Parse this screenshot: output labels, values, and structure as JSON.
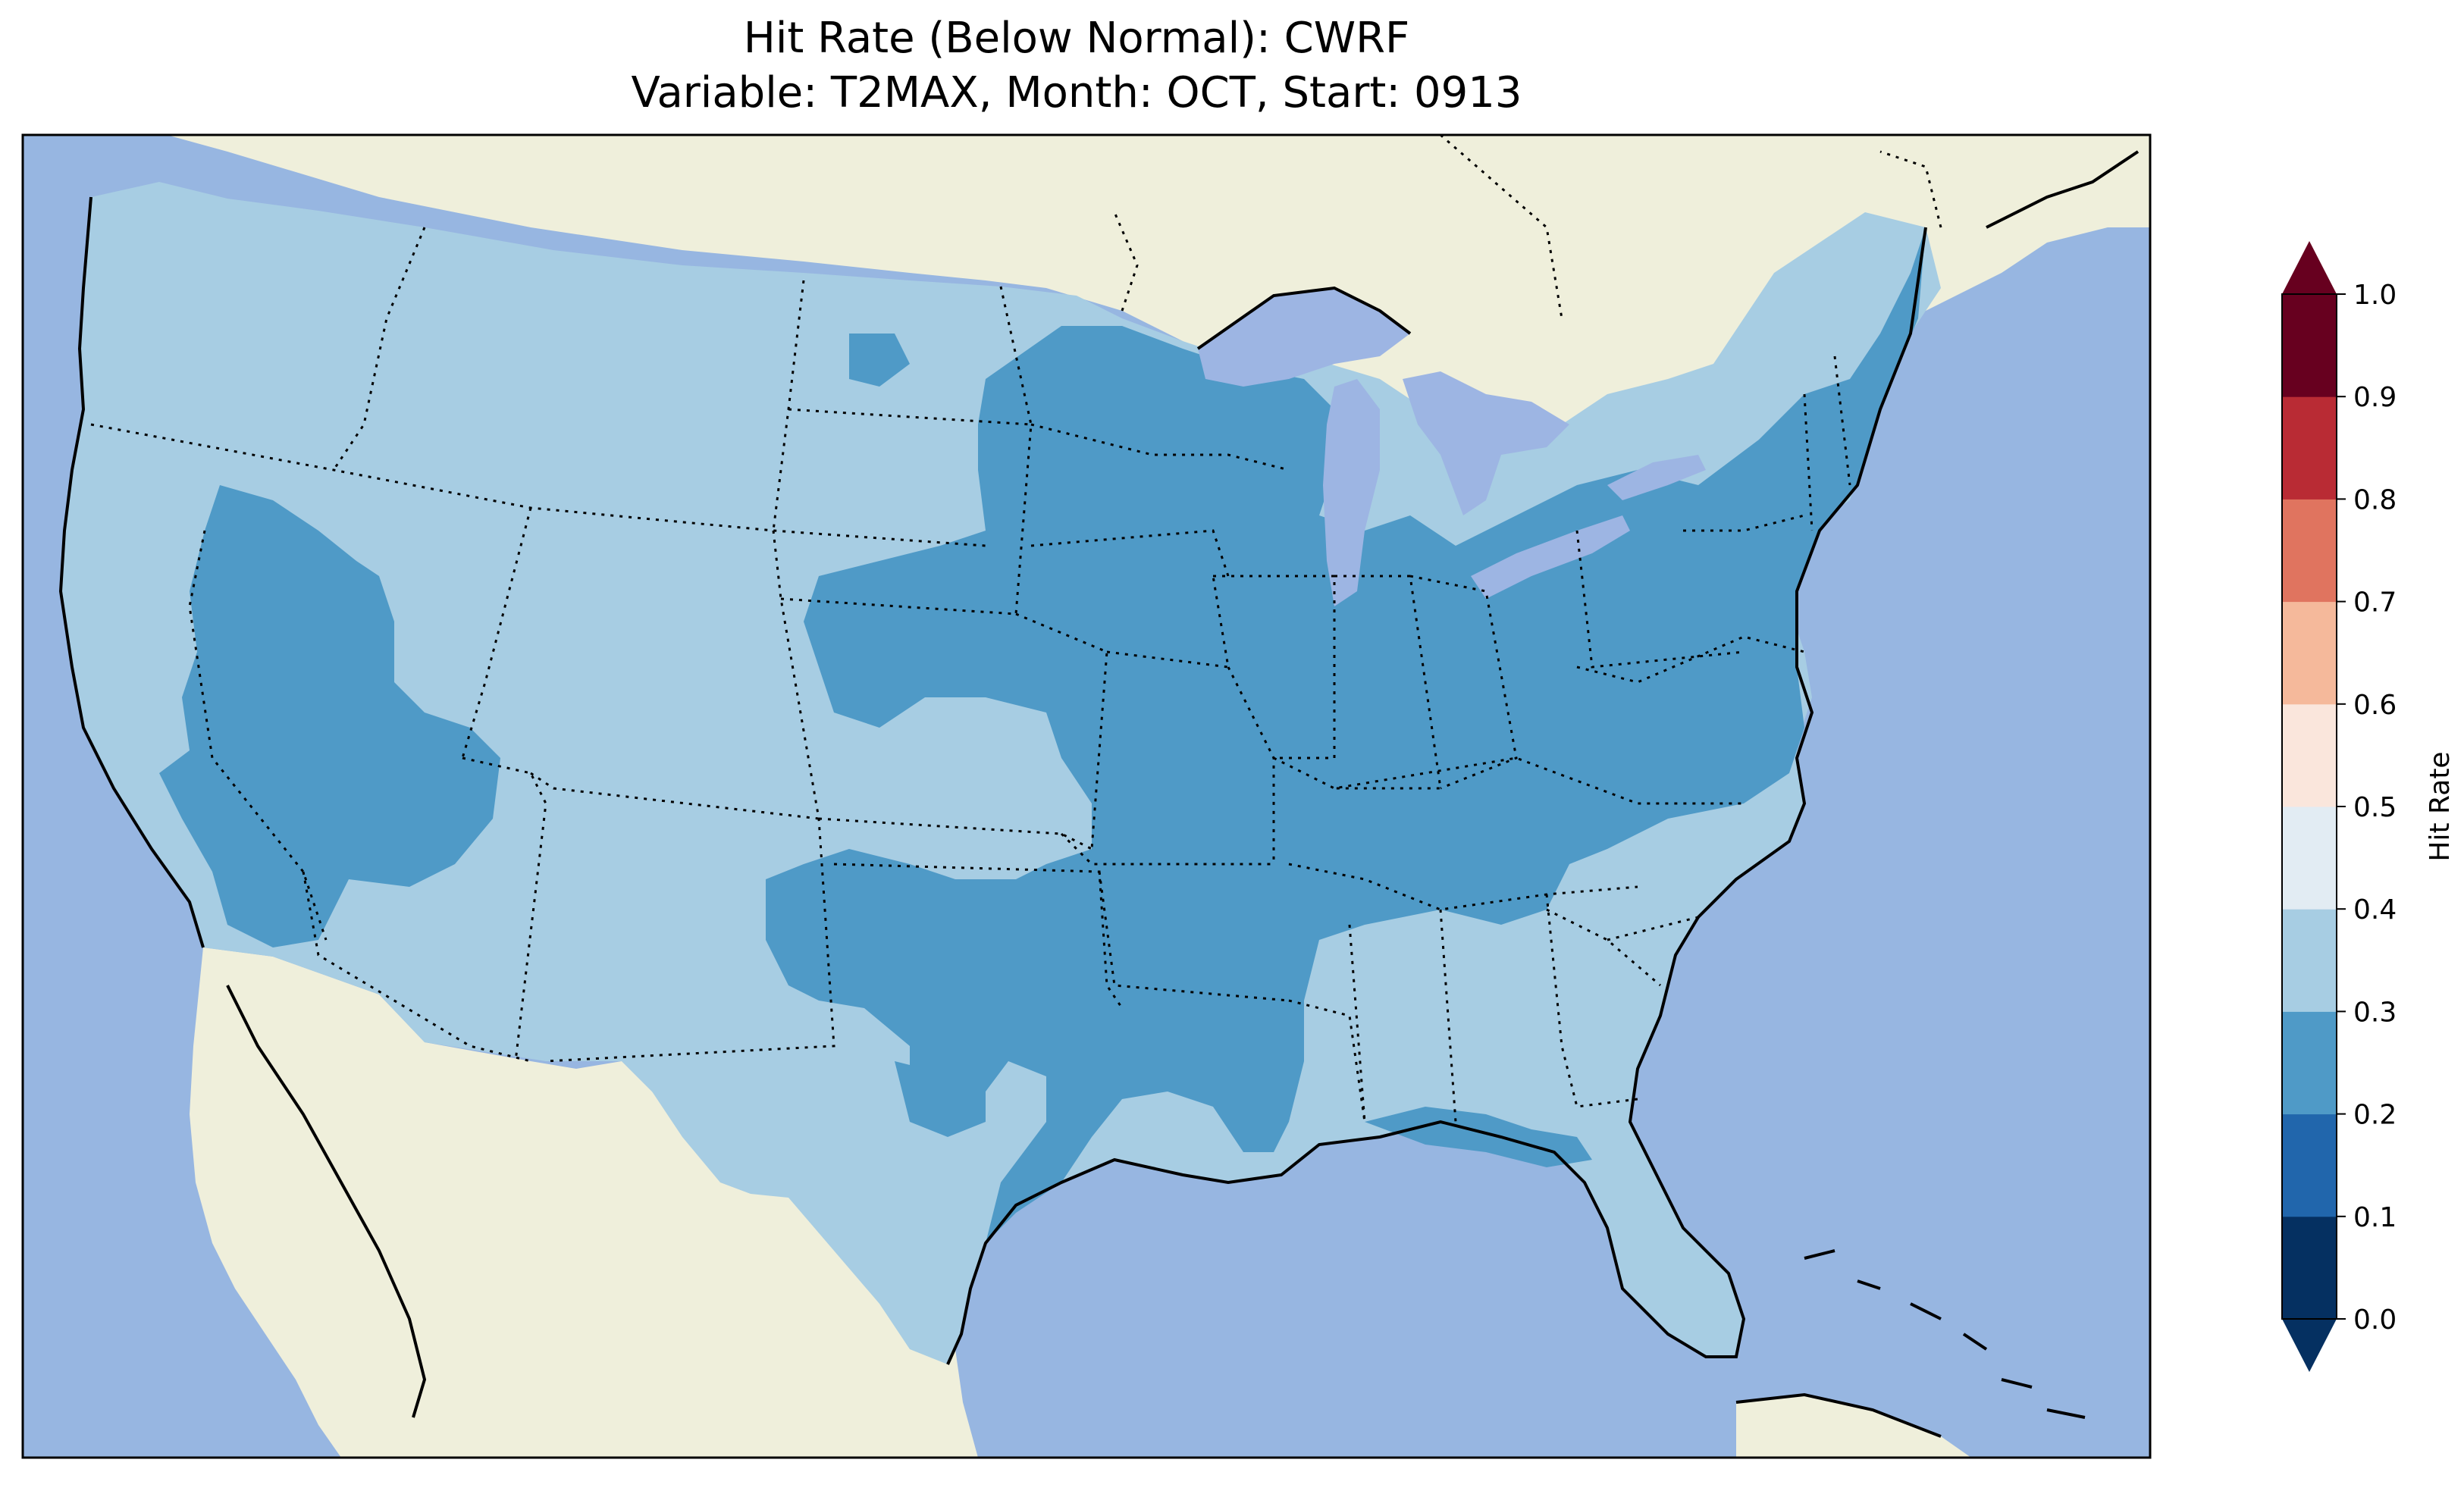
{
  "title": {
    "line1": "Hit Rate (Below Normal): CWRF",
    "line2": "Variable: T2MAX, Month: OCT, Start: 0913"
  },
  "colors": {
    "ocean": "#97b6e1",
    "land": "#efefdb",
    "lakes": "#9db5e3",
    "cls_0_1": "#053061",
    "cls_1_2": "#2166ac",
    "cls_2_3": "#4f9ac7",
    "cls_3_4": "#a7cde3",
    "cls_4_5": "#e2ecf3",
    "cls_5_6": "#fae6dc",
    "cls_6_7": "#f5b99b",
    "cls_7_8": "#e0745f",
    "cls_8_9": "#b92b34",
    "cls_9_10": "#67001f"
  },
  "colorbar": {
    "label": "Hit Rate",
    "ticks": [
      "0.0",
      "0.1",
      "0.2",
      "0.3",
      "0.4",
      "0.5",
      "0.6",
      "0.7",
      "0.8",
      "0.9",
      "1.0"
    ],
    "extend": "both"
  },
  "map": {
    "projection": "lambert-conformal",
    "region": "CONUS",
    "state_borders": "dotted",
    "coastlines": "solid"
  }
}
